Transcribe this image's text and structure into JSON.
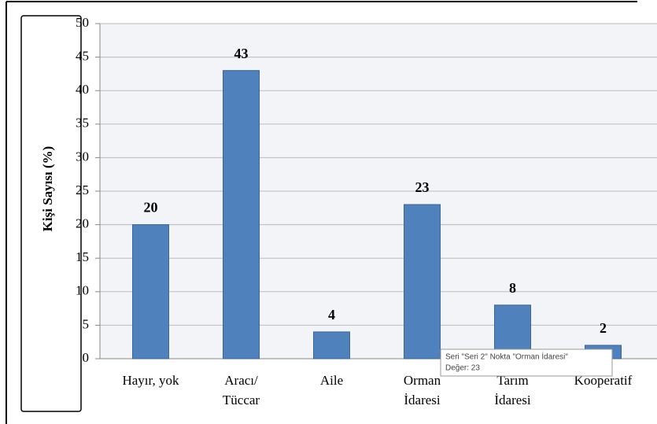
{
  "chart_data": {
    "type": "bar",
    "y_label": "Kişi Sayısı (%)",
    "categories": [
      [
        "Hayır, yok"
      ],
      [
        "Aracı/",
        "Tüccar"
      ],
      [
        "Aile"
      ],
      [
        "Orman",
        "İdaresi"
      ],
      [
        "Tarım",
        "İdaresi"
      ],
      [
        "Kooperatif"
      ]
    ],
    "values": [
      20,
      43,
      4,
      23,
      8,
      2
    ],
    "color": "#4f81bd",
    "ylim": [
      0,
      50
    ],
    "yticks": [
      0,
      5,
      10,
      15,
      20,
      25,
      30,
      35,
      40,
      45,
      50
    ],
    "grid": true,
    "tooltip": [
      "Seri \"Seri 2\" Nokta \"Orman İdaresi\"",
      "Değer: 23"
    ]
  }
}
